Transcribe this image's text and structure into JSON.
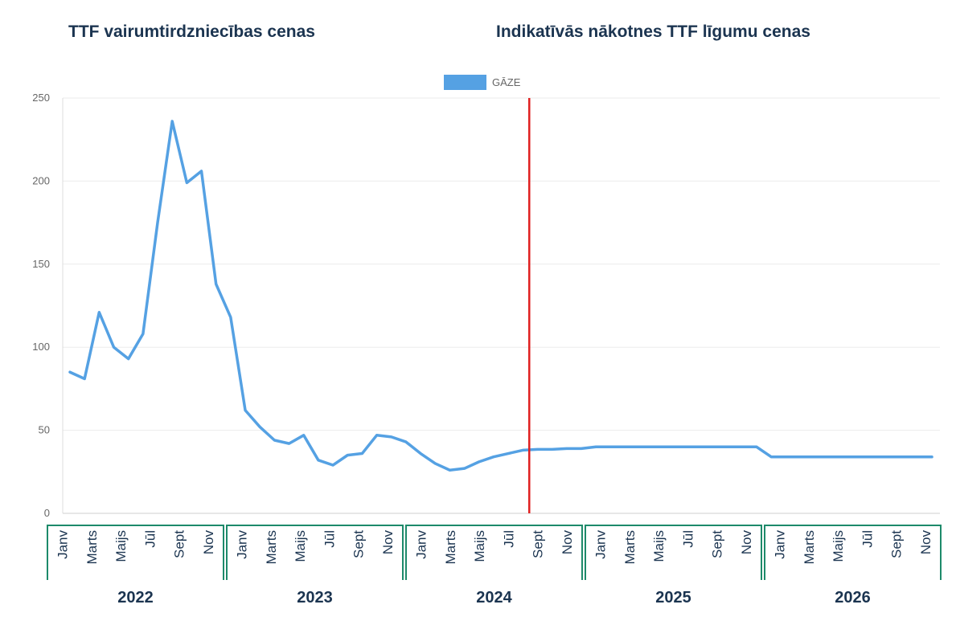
{
  "headings": {
    "left": "TTF vairumtirdzniecības cenas",
    "right": "Indikatīvās nākotnes TTF līgumu cenas"
  },
  "chart_data": {
    "type": "line",
    "title": "",
    "xlabel": "",
    "ylabel": "",
    "ylim": [
      0,
      250
    ],
    "y_ticks": [
      0,
      50,
      100,
      150,
      200,
      250
    ],
    "grid": true,
    "legend_position": "top-center",
    "series": [
      {
        "name": "GĀZE",
        "color": "#55a1e3",
        "values": [
          85,
          81,
          121,
          100,
          93,
          108,
          175,
          236,
          199,
          206,
          138,
          118,
          62,
          52,
          44,
          42,
          47,
          32,
          29,
          35,
          36,
          47,
          46,
          43,
          36,
          30,
          26,
          27,
          31,
          34,
          36,
          38,
          38.5,
          38.5,
          39,
          39,
          40,
          40,
          40,
          40,
          40,
          40,
          40,
          40,
          40,
          40,
          40,
          40,
          34,
          34,
          34,
          34,
          34,
          34,
          34,
          34,
          34,
          34,
          34,
          34
        ]
      }
    ],
    "forecast_marker": {
      "after_month_index": 31,
      "color": "#e02020"
    },
    "month_labels": [
      "Janv",
      "Marts",
      "Maijs",
      "Jūl",
      "Sept",
      "Nov"
    ],
    "years": [
      "2022",
      "2023",
      "2024",
      "2025",
      "2026"
    ],
    "group_border_color": "#1d8a6a"
  }
}
